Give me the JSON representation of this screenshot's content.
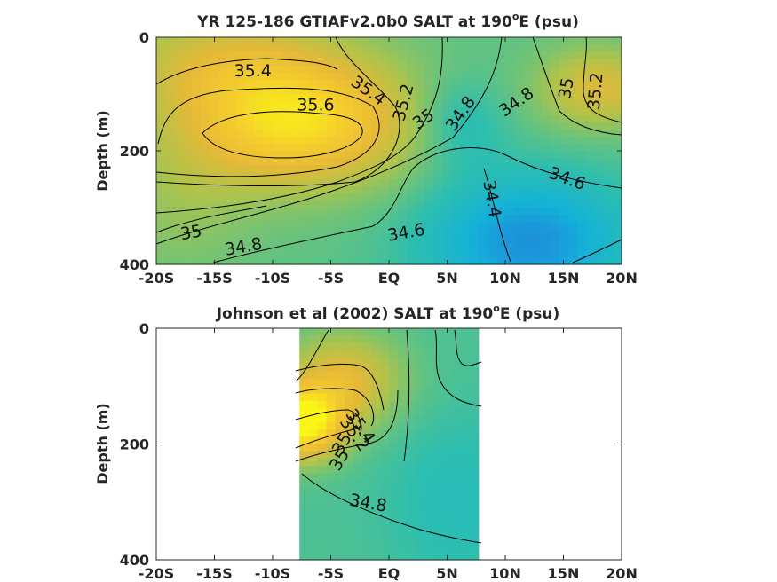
{
  "chart_data": [
    {
      "type": "heatmap",
      "title": "YR 125-186 GTIAFv2.0b0 SALT at 190",
      "title_sup": "o",
      "title_tail": "E (psu)",
      "ylabel": "Depth (m)",
      "xlabel": "",
      "xlim": [
        -20,
        20
      ],
      "ylim": [
        400,
        0
      ],
      "x_ticks": [
        -20,
        -15,
        -10,
        -5,
        0,
        5,
        10,
        15,
        20
      ],
      "x_tick_labels": [
        "-20S",
        "-15S",
        "-10S",
        "-5S",
        "EQ",
        "5N",
        "10N",
        "15N",
        "20N"
      ],
      "y_ticks": [
        0,
        200,
        400
      ],
      "y_tick_labels": [
        "0",
        "200",
        "400"
      ],
      "grid": false,
      "colormap": "parula",
      "contour_labels": [
        {
          "text": "35.4",
          "x": -11.7,
          "y": 60,
          "angle": 0
        },
        {
          "text": "35.4",
          "x": -1.8,
          "y": 95,
          "angle": 35
        },
        {
          "text": "35.6",
          "x": -6.3,
          "y": 120,
          "angle": 0
        },
        {
          "text": "35.2",
          "x": 1.3,
          "y": 115,
          "angle": -75
        },
        {
          "text": "35",
          "x": 3.0,
          "y": 145,
          "angle": -35
        },
        {
          "text": "34.8",
          "x": 6.2,
          "y": 135,
          "angle": -55
        },
        {
          "text": "34.8",
          "x": 11.0,
          "y": 115,
          "angle": -35
        },
        {
          "text": "35",
          "x": 15.3,
          "y": 90,
          "angle": -80
        },
        {
          "text": "35.2",
          "x": 17.8,
          "y": 95,
          "angle": -85
        },
        {
          "text": "34.6",
          "x": 15.3,
          "y": 250,
          "angle": 20
        },
        {
          "text": "34.4",
          "x": 8.8,
          "y": 285,
          "angle": 80
        },
        {
          "text": "34.6",
          "x": 1.5,
          "y": 345,
          "angle": -10
        },
        {
          "text": "35",
          "x": -17.0,
          "y": 345,
          "angle": -10
        },
        {
          "text": "34.8",
          "x": -12.5,
          "y": 370,
          "angle": -10
        }
      ]
    },
    {
      "type": "heatmap",
      "title": "Johnson et al (2002) SALT at 190",
      "title_sup": "o",
      "title_tail": "E (psu)",
      "ylabel": "Depth (m)",
      "xlabel": "",
      "xlim": [
        -20,
        20
      ],
      "ylim": [
        400,
        0
      ],
      "data_xlim": [
        -8,
        8
      ],
      "x_ticks": [
        -20,
        -15,
        -10,
        -5,
        0,
        5,
        10,
        15,
        20
      ],
      "x_tick_labels": [
        "-20S",
        "-15S",
        "-10S",
        "-5S",
        "EQ",
        "5N",
        "10N",
        "15N",
        "20N"
      ],
      "y_ticks": [
        0,
        200,
        400
      ],
      "y_tick_labels": [
        "0",
        "200",
        "400"
      ],
      "grid": false,
      "colormap": "parula",
      "contour_labels": [
        {
          "text": "35.4",
          "x": -2.5,
          "y": 170,
          "angle": 55
        },
        {
          "text": "35.2",
          "x": -3.0,
          "y": 183,
          "angle": 55
        },
        {
          "text": "35",
          "x": -4.0,
          "y": 200,
          "angle": -60
        },
        {
          "text": "35",
          "x": -4.2,
          "y": 228,
          "angle": -60
        },
        {
          "text": "34.8",
          "x": -1.8,
          "y": 303,
          "angle": 10
        }
      ]
    }
  ]
}
